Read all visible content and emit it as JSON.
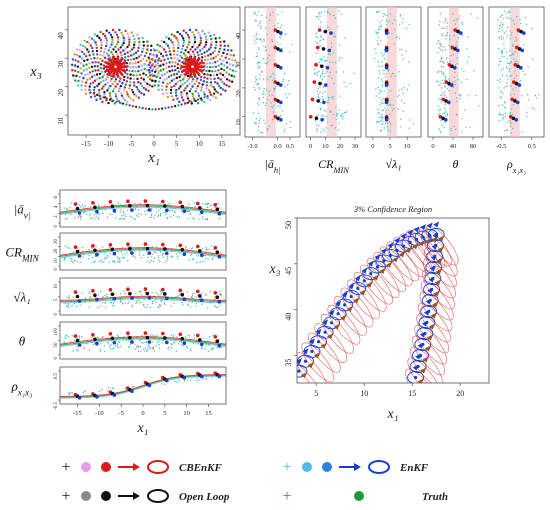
{
  "colors": {
    "cbenkf": "#e01818",
    "cbenkf_light": "#e89be8",
    "openloop": "#111111",
    "openloop_light": "#8a8a8a",
    "enkf": "#1a3ecf",
    "enkf_light": "#57b7e6",
    "enkf_mid": "#2f7fe0",
    "truth": "#1f9a3a",
    "cloud": "#33cccc",
    "ellipse_fill": "#f2c9c9"
  },
  "chart_data": [
    {
      "type": "scatter",
      "id": "attractor",
      "xlabel": "x₁",
      "ylabel": "x₃",
      "xticks": [
        "-15",
        "-10",
        "-5",
        "0",
        "5",
        "10",
        "15"
      ],
      "yticks": [
        "10",
        "20",
        "30",
        "40"
      ],
      "xlim": [
        -19,
        19
      ],
      "ylim": [
        3,
        48
      ],
      "wings": [
        [
          -8.5,
          27
        ],
        [
          8.5,
          27
        ]
      ],
      "series": [
        {
          "name": "CBEnKF",
          "color": "#e01818"
        },
        {
          "name": "Open Loop",
          "color": "#111111"
        },
        {
          "name": "EnKF",
          "color": "#1a3ecf"
        },
        {
          "name": "Truth",
          "color": "#1f9a3a"
        }
      ]
    },
    {
      "type": "scatter",
      "id": "vertical-panels",
      "shared_ylim": [
        3,
        48
      ],
      "shared_yticks": [
        "10",
        "20",
        "30",
        "40"
      ],
      "panels": [
        {
          "xlabel": "|ā_h|",
          "xticks": [
            "-1.0",
            "0.0",
            "0.5"
          ],
          "xlim": [
            -1.3,
            0.9
          ]
        },
        {
          "xlabel": "CR_MIN",
          "xticks": [
            "0",
            "10",
            "20",
            "30"
          ],
          "xlim": [
            -3,
            34
          ]
        },
        {
          "xlabel": "√λ₁",
          "xticks": [
            "0",
            "5",
            "10"
          ],
          "xlim": [
            -2,
            14
          ]
        },
        {
          "xlabel": "θ",
          "xticks": [
            "0",
            "40",
            "80"
          ],
          "xlim": [
            -10,
            100
          ]
        },
        {
          "xlabel": "ρ_{x₁x₃}",
          "xticks": [
            "-0.5",
            "0.5"
          ],
          "xlim": [
            -0.9,
            0.9
          ]
        }
      ]
    },
    {
      "type": "scatter",
      "id": "horizontal-panels",
      "xlabel": "x₁",
      "xticks": [
        "-15",
        "-10",
        "-5",
        "0",
        "5",
        "10",
        "15"
      ],
      "xlim": [
        -19,
        19
      ],
      "panels": [
        {
          "ylabel": "|ā_v|",
          "yticks": [
            "0",
            "2",
            "4",
            "6"
          ]
        },
        {
          "ylabel": "CR_MIN",
          "yticks": [
            "0",
            "10",
            "20",
            "30"
          ]
        },
        {
          "ylabel": "√λ₁",
          "yticks": [
            "0",
            "5",
            "10"
          ]
        },
        {
          "ylabel": "θ",
          "yticks": [
            "0",
            "50",
            "100"
          ]
        },
        {
          "ylabel": "ρ_{x₁x₃}",
          "yticks": [
            "-0.5",
            "0.5"
          ]
        }
      ]
    },
    {
      "type": "scatter",
      "id": "confidence-region",
      "title": "3% Confidence Region",
      "xlabel": "x₁",
      "ylabel": "x₃",
      "xticks": [
        "5",
        "10",
        "15",
        "20"
      ],
      "yticks": [
        "35",
        "40",
        "45",
        "50"
      ],
      "xlim": [
        3,
        23
      ],
      "ylim": [
        32,
        50
      ]
    }
  ],
  "legend": {
    "row1": [
      {
        "label": "CBEnKF",
        "set": "cbenkf"
      },
      {
        "label": "EnKF",
        "set": "enkf"
      }
    ],
    "row2": [
      {
        "label": "Open Loop",
        "set": "openloop"
      },
      {
        "label": "Truth",
        "set": "truth"
      }
    ]
  }
}
